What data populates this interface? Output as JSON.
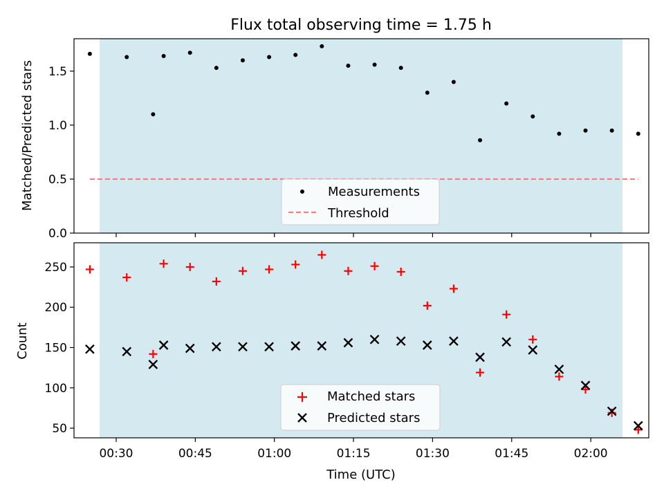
{
  "chart_data": [
    {
      "type": "scatter",
      "title": "Flux total observing time = 1.75 h",
      "xlabel": "",
      "ylabel": "Matched/Predicted stars",
      "ylim": [
        0,
        1.8
      ],
      "yticks": [
        "0.0",
        "0.5",
        "1.0",
        "1.5"
      ],
      "grid": false,
      "legend_position": "lower-center",
      "shaded_region": {
        "x_start": "00:25",
        "x_end": "02:09",
        "color": "#d4eaf0"
      },
      "threshold": {
        "name": "Threshold",
        "value": 0.5,
        "style": "dashed",
        "color": "#f08080"
      },
      "series": [
        {
          "name": "Measurements",
          "color": "#000000",
          "marker": "dot",
          "x": [
            "00:25",
            "00:32",
            "00:37",
            "00:39",
            "00:44",
            "00:49",
            "00:54",
            "00:59",
            "01:04",
            "01:09",
            "01:14",
            "01:19",
            "01:24",
            "01:29",
            "01:34",
            "01:39",
            "01:44",
            "01:49",
            "01:54",
            "01:59",
            "02:04",
            "02:09"
          ],
          "y": [
            1.66,
            1.63,
            1.1,
            1.64,
            1.67,
            1.53,
            1.6,
            1.63,
            1.65,
            1.73,
            1.55,
            1.56,
            1.53,
            1.3,
            1.4,
            0.86,
            1.2,
            1.08,
            0.92,
            0.95,
            0.95,
            0.92
          ]
        }
      ]
    },
    {
      "type": "scatter",
      "title": "",
      "xlabel": "Time (UTC)",
      "ylabel": "Count",
      "ylim": [
        38,
        280
      ],
      "yticks": [
        "50",
        "100",
        "150",
        "200",
        "250"
      ],
      "xticks": [
        "00:30",
        "00:45",
        "01:00",
        "01:15",
        "01:30",
        "01:45",
        "02:00"
      ],
      "xlim": [
        "00:22",
        "02:11"
      ],
      "grid": false,
      "legend_position": "lower-center",
      "series": [
        {
          "name": "Matched stars",
          "color": "#ff0000",
          "marker": "plus",
          "x": [
            "00:25",
            "00:32",
            "00:37",
            "00:39",
            "00:44",
            "00:49",
            "00:54",
            "00:59",
            "01:04",
            "01:09",
            "01:14",
            "01:19",
            "01:24",
            "01:29",
            "01:34",
            "01:39",
            "01:44",
            "01:49",
            "01:54",
            "01:59",
            "02:04",
            "02:09"
          ],
          "y": [
            247,
            237,
            142,
            254,
            250,
            232,
            245,
            247,
            253,
            265,
            245,
            251,
            244,
            202,
            223,
            119,
            191,
            160,
            114,
            98,
            69,
            48
          ]
        },
        {
          "name": "Predicted stars",
          "color": "#000000",
          "marker": "x",
          "x": [
            "00:25",
            "00:32",
            "00:37",
            "00:39",
            "00:44",
            "00:49",
            "00:54",
            "00:59",
            "01:04",
            "01:09",
            "01:14",
            "01:19",
            "01:24",
            "01:29",
            "01:34",
            "01:39",
            "01:44",
            "01:49",
            "01:54",
            "01:59",
            "02:04",
            "02:09"
          ],
          "y": [
            148,
            145,
            129,
            153,
            149,
            151,
            151,
            151,
            152,
            152,
            156,
            160,
            158,
            153,
            158,
            138,
            157,
            147,
            123,
            103,
            71,
            53
          ]
        }
      ]
    }
  ]
}
